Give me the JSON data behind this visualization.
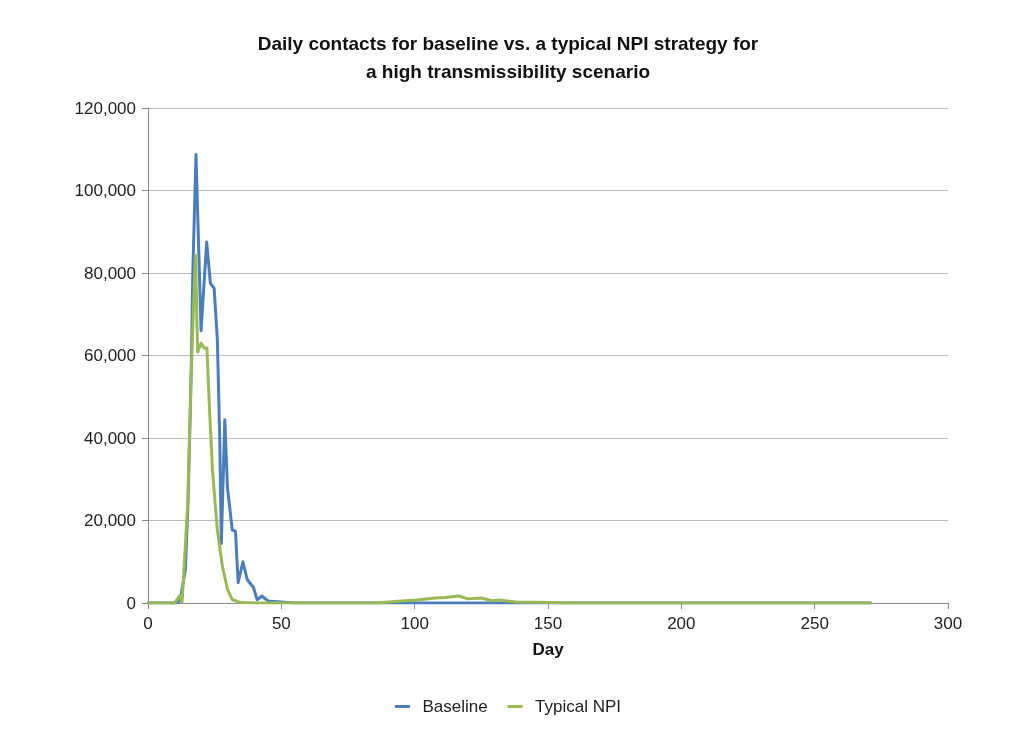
{
  "chart_data": {
    "type": "line",
    "title": "Daily contacts for baseline vs. a typical NPI strategy for\na high transmissibility scenario",
    "xlabel": "Day",
    "xlim": [
      0,
      300
    ],
    "xticks": [
      0,
      50,
      100,
      150,
      200,
      250,
      300
    ],
    "ylim": [
      0,
      120000
    ],
    "yticks": [
      {
        "value": 0,
        "label": "0"
      },
      {
        "value": 20000,
        "label": "20,000"
      },
      {
        "value": 40000,
        "label": "40,000"
      },
      {
        "value": 60000,
        "label": "60,000"
      },
      {
        "value": 80000,
        "label": "80,000"
      },
      {
        "value": 100000,
        "label": "100,000"
      },
      {
        "value": 120000,
        "label": "120,000"
      }
    ],
    "grid": "y",
    "legend": "bottom",
    "marker": "none",
    "line_style": "solid",
    "series": [
      {
        "name": "Baseline",
        "color": "#4a7ebb",
        "x": [
          0,
          10,
          12,
          14,
          15,
          16.2,
          16.8,
          18,
          19.9,
          22,
          23.4,
          24.8,
          26,
          26.9,
          27.5,
          28.8,
          29.8,
          31.6,
          32.8,
          33.8,
          35.6,
          37.2,
          39.6,
          40.9,
          42.7,
          45,
          48.6,
          55,
          100,
          150,
          200,
          271
        ],
        "values": [
          0,
          0,
          500,
          8000,
          24000,
          56000,
          80000,
          108700,
          66000,
          87500,
          77500,
          76300,
          64000,
          40000,
          14400,
          44400,
          28000,
          17700,
          17400,
          4900,
          10000,
          5700,
          3700,
          800,
          1700,
          500,
          300,
          0,
          0,
          0,
          0,
          0
        ]
      },
      {
        "name": "Typical NPI",
        "color": "#98b954",
        "x": [
          0,
          10,
          11.9,
          12.8,
          14.9,
          16.2,
          17.8,
          18.6,
          19.9,
          21.1,
          22.1,
          23,
          24.2,
          26,
          27.9,
          29.8,
          31.6,
          35,
          40,
          60,
          86,
          95,
          101,
          107.6,
          111.4,
          116.5,
          120,
          125,
          129,
          131.6,
          138,
          150,
          160,
          200,
          271
        ],
        "values": [
          0,
          0,
          1700,
          300,
          24000,
          56000,
          84300,
          60800,
          63000,
          61800,
          61800,
          48000,
          32000,
          17700,
          8900,
          3300,
          800,
          100,
          0,
          0,
          0,
          500,
          700,
          1200,
          1350,
          1700,
          1000,
          1200,
          560,
          700,
          240,
          100,
          0,
          0,
          0
        ]
      }
    ]
  }
}
